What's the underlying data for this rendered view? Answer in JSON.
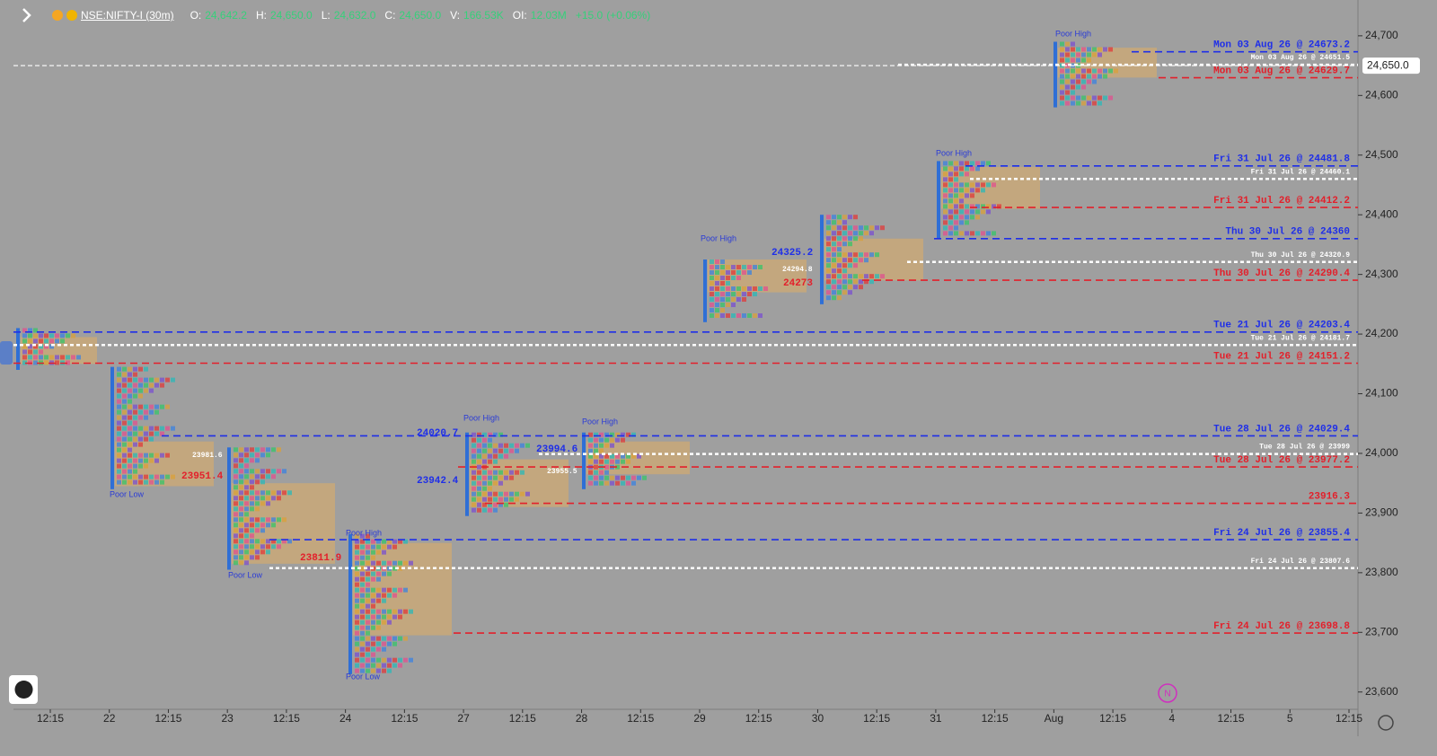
{
  "header": {
    "symbol": "NSE:NIFTY-I (30m)",
    "open_label": "O:",
    "open": "24,642.2",
    "high_label": "H:",
    "high": "24,650.0",
    "low_label": "L:",
    "low": "24,632.0",
    "close_label": "C:",
    "close": "24,650.0",
    "volume_label": "V:",
    "volume": "166.53K",
    "oi_label": "OI:",
    "oi": "12.03M",
    "change": "+15.0",
    "change_percent": "(+0.06%)"
  },
  "chart_data": {
    "type": "market-profile",
    "categories": [
      "12:15",
      "22",
      "12:15",
      "23",
      "12:15",
      "24",
      "12:15",
      "27",
      "12:15",
      "28",
      "12:15",
      "29",
      "12:15",
      "30",
      "12:15",
      "31",
      "12:15",
      "Aug",
      "12:15",
      "4",
      "12:15",
      "5",
      "12:15"
    ],
    "ylim": [
      23571,
      24760
    ],
    "yticks": [
      {
        "value": 24700,
        "label": "24,700"
      },
      {
        "value": 24600,
        "label": "24,600"
      },
      {
        "value": 24500,
        "label": "24,500"
      },
      {
        "value": 24400,
        "label": "24,400"
      },
      {
        "value": 24300,
        "label": "24,300"
      },
      {
        "value": 24200,
        "label": "24,200"
      },
      {
        "value": 24100,
        "label": "24,100"
      },
      {
        "value": 24000,
        "label": "24,000"
      },
      {
        "value": 23900,
        "label": "23,900"
      },
      {
        "value": 23800,
        "label": "23,800"
      },
      {
        "value": 23700,
        "label": "23,700"
      },
      {
        "value": 23600,
        "label": "23,600"
      }
    ],
    "last_price": {
      "value": 24650,
      "label": "24,650.0"
    },
    "sessions": [
      {
        "low": 24140,
        "high": 24210,
        "va_low": 24150,
        "va_high": 24195
      },
      {
        "low": 23940,
        "high": 24145,
        "va_low": 23945,
        "va_high": 24020
      },
      {
        "low": 23805,
        "high": 24010,
        "va_low": 23815,
        "va_high": 23950
      },
      {
        "low": 23630,
        "high": 23865,
        "va_low": 23695,
        "va_high": 23850
      },
      {
        "low": 23895,
        "high": 24035,
        "va_low": 23910,
        "va_high": 23990
      },
      {
        "low": 23940,
        "high": 24035,
        "va_low": 23965,
        "va_high": 24020
      },
      {
        "low": 24220,
        "high": 24325,
        "va_low": 24270,
        "va_high": 24325
      },
      {
        "low": 24250,
        "high": 24400,
        "va_low": 24290,
        "va_high": 24360
      },
      {
        "low": 24360,
        "high": 24490,
        "va_low": 24410,
        "va_high": 24480
      },
      {
        "low": 24580,
        "high": 24690,
        "va_low": 24630,
        "va_high": 24680
      }
    ],
    "levels": [
      {
        "label": "Mon 03 Aug 26 @ 24673.2",
        "value": 24673.2,
        "color": "#1f2fe8"
      },
      {
        "label": "Mon 03 Aug 26 @ 24651.5",
        "value": 24651.5,
        "color": "#ffffff"
      },
      {
        "label": "Mon 03 Aug 26 @ 24629.7",
        "value": 24629.7,
        "color": "#e3202b"
      },
      {
        "label": "Fri 31 Jul 26 @ 24481.8",
        "value": 24481.8,
        "color": "#1f2fe8"
      },
      {
        "label": "Fri 31 Jul 26 @ 24460.1",
        "value": 24460.1,
        "color": "#ffffff"
      },
      {
        "label": "Fri 31 Jul 26 @ 24412.2",
        "value": 24412.2,
        "color": "#e3202b"
      },
      {
        "label": "Thu 30 Jul 26 @ 24360",
        "value": 24360,
        "color": "#1f2fe8"
      },
      {
        "label": "Thu 30 Jul 26 @ 24320.9",
        "value": 24320.9,
        "color": "#ffffff"
      },
      {
        "label": "Thu 30 Jul 26 @ 24290.4",
        "value": 24290.4,
        "color": "#e3202b"
      },
      {
        "label": "Tue 21 Jul 26 @ 24203.4",
        "value": 24203.4,
        "color": "#1f2fe8"
      },
      {
        "label": "Tue 21 Jul 26 @ 24181.7",
        "value": 24181.7,
        "color": "#ffffff"
      },
      {
        "label": "Tue 21 Jul 26 @ 24151.2",
        "value": 24151.2,
        "color": "#e3202b"
      },
      {
        "label": "Tue 28 Jul 26 @ 24029.4",
        "value": 24029.4,
        "color": "#1f2fe8"
      },
      {
        "label": "Tue 28 Jul 26 @ 23999",
        "value": 23999,
        "color": "#ffffff"
      },
      {
        "label": "Tue 28 Jul 26 @ 23977.2",
        "value": 23977.2,
        "color": "#e3202b"
      },
      {
        "label": "23916.3",
        "value": 23916.3,
        "color": "#e3202b"
      },
      {
        "label": "Fri 24 Jul 26 @ 23855.4",
        "value": 23855.4,
        "color": "#1f2fe8"
      },
      {
        "label": "Fri 24 Jul 26 @ 23807.6",
        "value": 23807.6,
        "color": "#ffffff"
      },
      {
        "label": "Fri 24 Jul 26 @ 23698.8",
        "value": 23698.8,
        "color": "#e3202b"
      }
    ],
    "annotations": [
      {
        "text": "Poor High",
        "color": "#2a3bd6"
      },
      {
        "text": "Poor High",
        "color": "#2a3bd6"
      },
      {
        "text": "Poor High",
        "color": "#2a3bd6"
      },
      {
        "text": "Poor High",
        "color": "#2a3bd6"
      },
      {
        "text": "Poor High",
        "color": "#2a3bd6"
      },
      {
        "text": "Poor High",
        "color": "#2a3bd6"
      },
      {
        "text": "Poor Low",
        "color": "#2a3bd6"
      },
      {
        "text": "Poor Low",
        "color": "#2a3bd6"
      },
      {
        "text": "Poor Low",
        "color": "#2a3bd6"
      },
      {
        "text": "24020.7",
        "color": "#1f2fe8"
      },
      {
        "text": "23942.4",
        "color": "#1f2fe8"
      },
      {
        "text": "23994.6",
        "color": "#1f2fe8"
      },
      {
        "text": "24325.2",
        "color": "#1f2fe8"
      },
      {
        "text": "24273",
        "color": "#e3202b"
      },
      {
        "text": "23811.9",
        "color": "#e3202b"
      },
      {
        "text": "23951.4",
        "color": "#e3202b"
      },
      {
        "text": "23981.6",
        "color": "#ffffff"
      },
      {
        "text": "24294.8",
        "color": "#ffffff"
      },
      {
        "text": "23955.5",
        "color": "#ffffff"
      }
    ]
  }
}
